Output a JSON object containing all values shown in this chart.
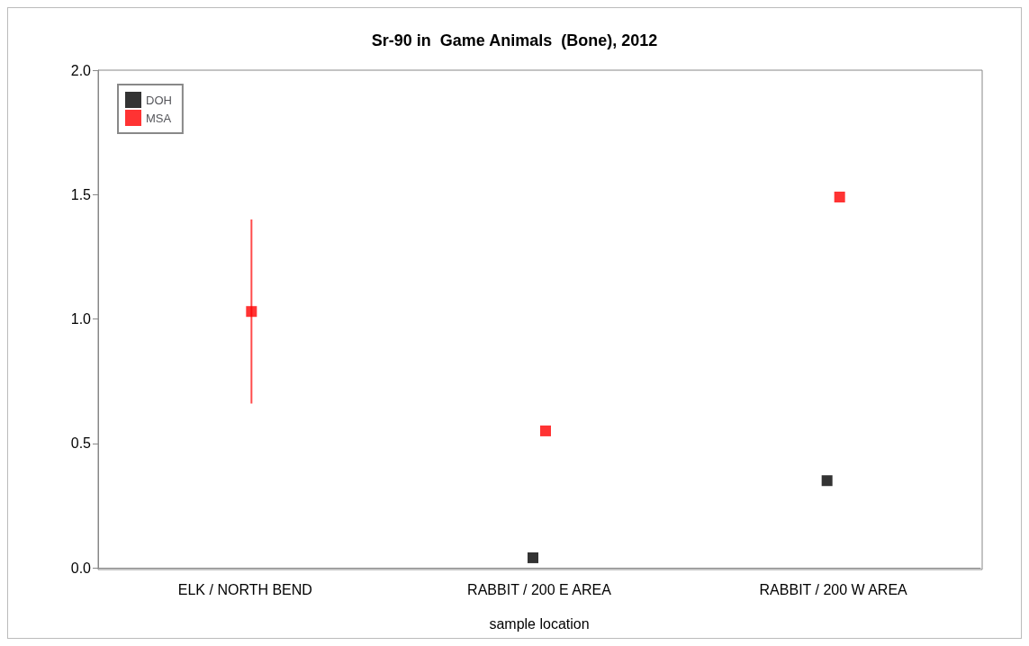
{
  "chart_data": {
    "type": "scatter",
    "title": "Sr-90 in  Game Animals  (Bone), 2012",
    "xlabel": "sample location",
    "categories": [
      "ELK / NORTH BEND",
      "RABBIT / 200 E AREA",
      "RABBIT / 200 W AREA"
    ],
    "series": [
      {
        "name": "DOH",
        "color": "#000000",
        "values": [
          null,
          0.04,
          0.35
        ]
      },
      {
        "name": "MSA",
        "color": "#ff0000",
        "values": [
          1.03,
          0.55,
          1.49
        ],
        "errors": [
          [
            0.66,
            1.4
          ],
          null,
          null
        ]
      }
    ],
    "ylim": [
      0,
      2
    ],
    "yticks": [
      {
        "value": 0,
        "label": "0.0"
      },
      {
        "value": 0.5,
        "label": "0.5"
      },
      {
        "value": 1,
        "label": "1.0"
      },
      {
        "value": 1.5,
        "label": "1.5"
      },
      {
        "value": 2,
        "label": "2.0"
      }
    ],
    "grid": false,
    "legend": "top left",
    "marker": "square"
  }
}
